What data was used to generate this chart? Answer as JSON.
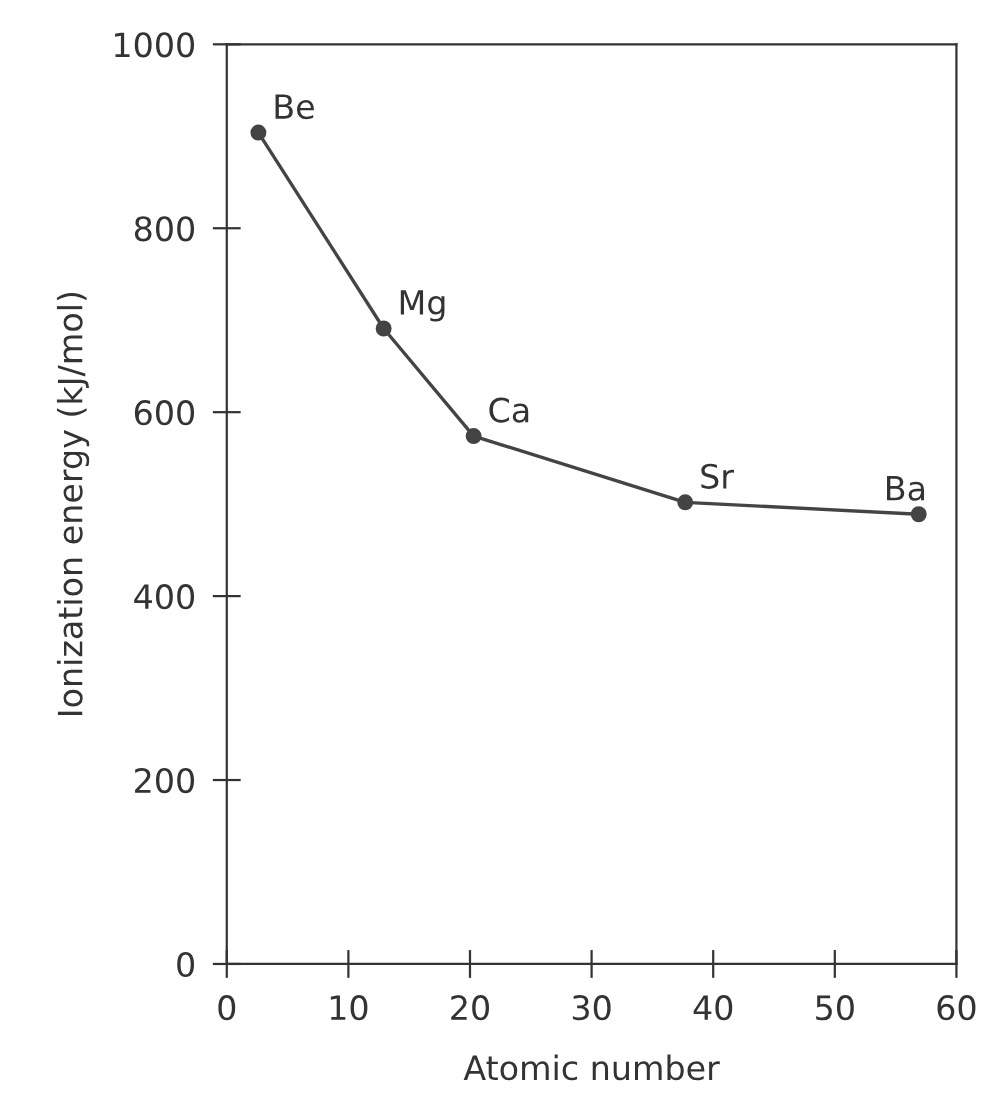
{
  "chart_data": {
    "type": "line",
    "xlabel": "Atomic number",
    "ylabel": "Ionization energy (kJ/mol)",
    "x": [
      2.6,
      12.9,
      20.3,
      37.7,
      56.9
    ],
    "series": [
      {
        "color": "#444444",
        "values": [
          904,
          691,
          574,
          502,
          489
        ]
      }
    ],
    "xlim": [
      0,
      60
    ],
    "xticks": [
      0,
      10,
      20,
      30,
      40,
      50,
      60
    ],
    "ylim": [
      0,
      1000
    ],
    "yticks": [
      0,
      200,
      400,
      600,
      800,
      1000
    ],
    "marker": "circle",
    "line_style": "solid",
    "grid": false,
    "legend": false,
    "annotations": [
      {
        "text": "Be",
        "x": 2.6,
        "y": 904
      },
      {
        "text": "Mg",
        "x": 12.9,
        "y": 691
      },
      {
        "text": "Ca",
        "x": 20.3,
        "y": 574
      },
      {
        "text": "Sr",
        "x": 37.7,
        "y": 502
      },
      {
        "text": "Ba",
        "x": 56.9,
        "y": 489
      }
    ]
  }
}
